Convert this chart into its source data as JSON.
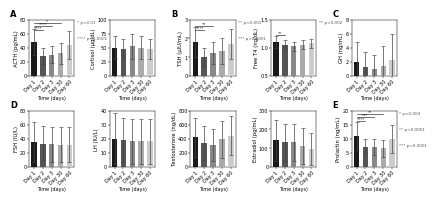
{
  "time_labels": [
    "Day 1",
    "Day 2",
    "Day 3",
    "Day 30",
    "Day 60"
  ],
  "panels": [
    {
      "row": 0,
      "col": 0,
      "letter": "A",
      "ylabel": "ACTH (pg/mL)",
      "values": [
        48,
        28,
        30,
        32,
        44
      ],
      "errors": [
        18,
        12,
        12,
        15,
        20
      ],
      "ylim": [
        0,
        80
      ],
      "yticks": [
        0,
        20,
        40,
        60,
        80
      ],
      "sig_legend": [
        "* p<0.01",
        "**** p<0.0001"
      ],
      "sig_bars": [
        [
          0,
          1,
          "****"
        ],
        [
          0,
          2,
          "****"
        ],
        [
          0,
          3,
          "*"
        ]
      ]
    },
    {
      "row": 0,
      "col": 1,
      "letter": "",
      "ylabel": "Cortisol (µg/dL)",
      "values": [
        50,
        48,
        52,
        50,
        48
      ],
      "errors": [
        20,
        18,
        22,
        20,
        18
      ],
      "ylim": [
        0,
        100
      ],
      "yticks": [
        0,
        25,
        50,
        75,
        100
      ],
      "sig_legend": [],
      "sig_bars": []
    },
    {
      "row": 0,
      "col": 2,
      "letter": "B",
      "ylabel": "TSH (µIU/mL)",
      "values": [
        1.8,
        1.0,
        1.2,
        1.3,
        1.7
      ],
      "errors": [
        0.8,
        0.5,
        0.6,
        0.7,
        0.8
      ],
      "ylim": [
        0,
        3
      ],
      "yticks": [
        0,
        1,
        2,
        3
      ],
      "sig_legend": [
        "** p<0.001",
        "*** p<0.0001"
      ],
      "sig_bars": [
        [
          0,
          1,
          "****"
        ],
        [
          0,
          2,
          "**"
        ]
      ]
    },
    {
      "row": 0,
      "col": 3,
      "letter": "",
      "ylabel": "Free T4 (ng/dL)",
      "values": [
        1.1,
        1.05,
        1.02,
        1.05,
        1.08
      ],
      "errors": [
        0.1,
        0.08,
        0.08,
        0.08,
        0.08
      ],
      "ylim": [
        0.5,
        1.5
      ],
      "yticks": [
        0.5,
        1.0,
        1.5
      ],
      "sig_legend": [
        "** p<0.002"
      ],
      "sig_bars": [
        [
          0,
          1,
          "**"
        ]
      ]
    },
    {
      "row": 0,
      "col": 4,
      "letter": "C",
      "ylabel": "GH (ng/mL)",
      "values": [
        2.0,
        1.2,
        0.9,
        1.4,
        2.2
      ],
      "errors": [
        2.8,
        2.2,
        2.0,
        2.8,
        3.8
      ],
      "ylim": [
        0,
        8
      ],
      "yticks": [
        0,
        2,
        4,
        6,
        8
      ],
      "sig_legend": [],
      "sig_bars": []
    },
    {
      "row": 1,
      "col": 0,
      "letter": "D",
      "ylabel": "FSH (IU/L)",
      "values": [
        35,
        33,
        32,
        31,
        31
      ],
      "errors": [
        28,
        25,
        25,
        25,
        25
      ],
      "ylim": [
        0,
        80
      ],
      "yticks": [
        0,
        20,
        40,
        60,
        80
      ],
      "sig_legend": [],
      "sig_bars": []
    },
    {
      "row": 1,
      "col": 1,
      "letter": "",
      "ylabel": "LH (IU/L)",
      "values": [
        20,
        19,
        18,
        18,
        18
      ],
      "errors": [
        18,
        16,
        16,
        16,
        16
      ],
      "ylim": [
        0,
        40
      ],
      "yticks": [
        0,
        10,
        20,
        30,
        40
      ],
      "sig_legend": [],
      "sig_bars": []
    },
    {
      "row": 1,
      "col": 2,
      "letter": "",
      "ylabel": "Testosterone (ng/dL)",
      "values": [
        420,
        340,
        310,
        390,
        440
      ],
      "errors": [
        280,
        240,
        230,
        260,
        280
      ],
      "ylim": [
        0,
        800
      ],
      "yticks": [
        0,
        200,
        400,
        600,
        800
      ],
      "sig_legend": [],
      "sig_bars": []
    },
    {
      "row": 1,
      "col": 3,
      "letter": "",
      "ylabel": "Estradiol (pg/mL)",
      "values": [
        140,
        130,
        130,
        110,
        95
      ],
      "errors": [
        110,
        100,
        100,
        95,
        85
      ],
      "ylim": [
        0,
        300
      ],
      "yticks": [
        0,
        100,
        200,
        300
      ],
      "sig_legend": [],
      "sig_bars": []
    },
    {
      "row": 1,
      "col": 4,
      "letter": "E",
      "ylabel": "Prolactin (ng/mL)",
      "values": [
        11,
        7,
        7,
        6.5,
        10
      ],
      "errors": [
        5,
        3,
        3,
        3,
        5
      ],
      "ylim": [
        0,
        20
      ],
      "yticks": [
        0,
        5,
        10,
        15,
        20
      ],
      "sig_legend": [
        "* p<0.004",
        "** p<0.0001",
        "*** p<0.0001"
      ],
      "sig_bars": [
        [
          0,
          1,
          "****"
        ],
        [
          0,
          2,
          "***"
        ],
        [
          0,
          3,
          "**"
        ]
      ]
    }
  ],
  "bar_colors": [
    "#1a1a1a",
    "#555555",
    "#888888",
    "#aaaaaa",
    "#cccccc"
  ],
  "bg_color": "#ffffff"
}
